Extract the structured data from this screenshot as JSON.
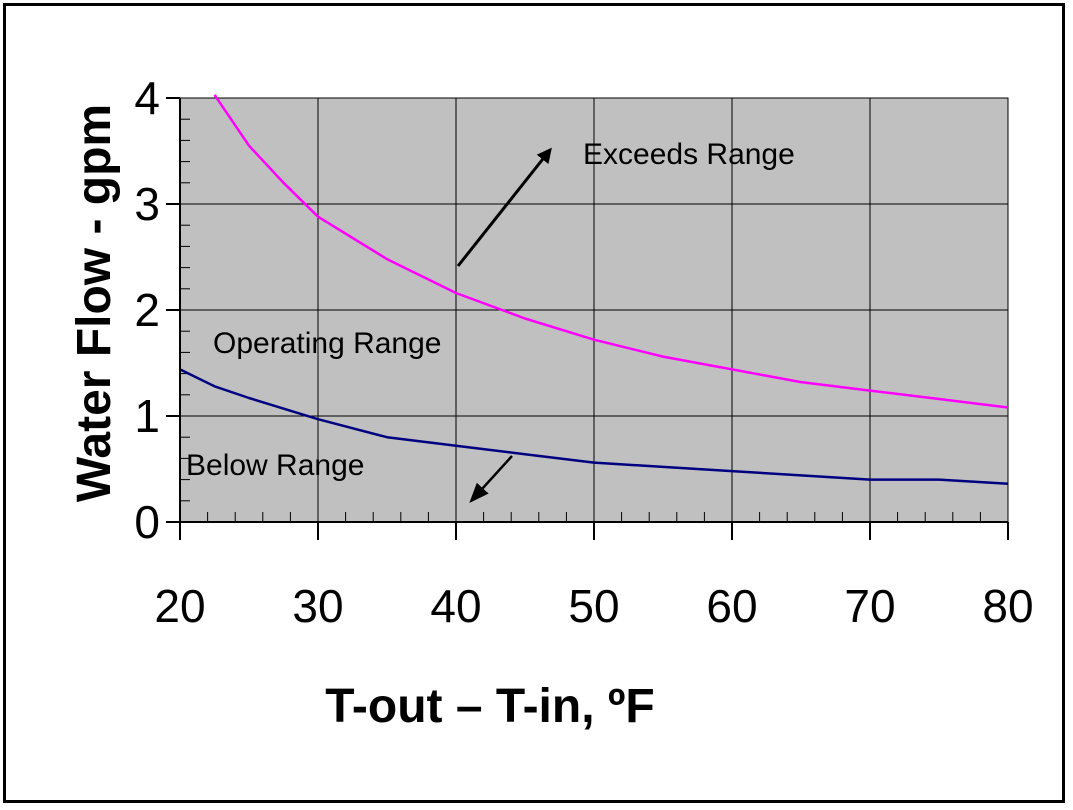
{
  "chart_data": {
    "type": "line",
    "xlabel": "T-out – T-in, ºF",
    "ylabel": "Water Flow - gpm",
    "xlim": [
      20,
      80
    ],
    "ylim": [
      0,
      4
    ],
    "xticks": [
      "20",
      "30",
      "40",
      "50",
      "60",
      "70",
      "80"
    ],
    "yticks": [
      "0",
      "1",
      "2",
      "3",
      "4"
    ],
    "grid": true,
    "plot_background": "#c0c0c0",
    "series": [
      {
        "color": "#ff00ff",
        "x": [
          22.5,
          25,
          27.5,
          30,
          35,
          40,
          45,
          50,
          55,
          60,
          65,
          70,
          75,
          80
        ],
        "y": [
          4.03,
          3.55,
          3.2,
          2.88,
          2.48,
          2.16,
          1.92,
          1.72,
          1.56,
          1.44,
          1.32,
          1.24,
          1.16,
          1.08
        ]
      },
      {
        "color": "#000080",
        "x": [
          20,
          22.5,
          25,
          30,
          35,
          40,
          45,
          50,
          55,
          60,
          65,
          70,
          75,
          80
        ],
        "y": [
          1.44,
          1.28,
          1.17,
          0.97,
          0.8,
          0.72,
          0.64,
          0.56,
          0.52,
          0.48,
          0.44,
          0.4,
          0.4,
          0.36
        ]
      }
    ],
    "annotations": {
      "exceeds": "Exceeds Range",
      "operating": "Operating Range",
      "below": "Below Range"
    }
  }
}
